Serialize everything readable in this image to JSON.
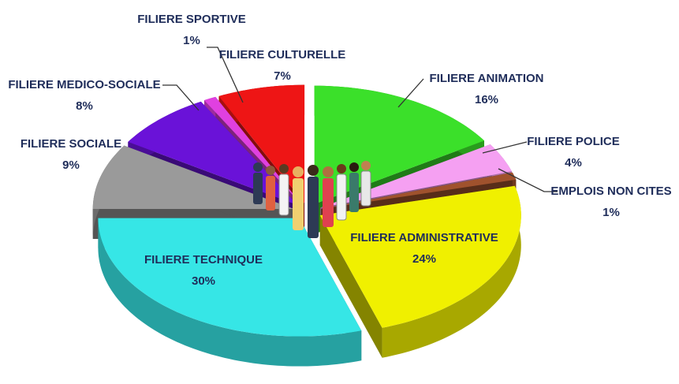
{
  "chart_data": {
    "type": "pie3d",
    "categories": [
      "FILIERE ANIMATION",
      "FILIERE POLICE",
      "EMPLOIS NON CITES",
      "FILIERE ADMINISTRATIVE",
      "FILIERE TECHNIQUE",
      "FILIERE SOCIALE",
      "FILIERE MEDICO-SOCIALE",
      "FILIERE SPORTIVE",
      "FILIERE CULTURELLE"
    ],
    "values": [
      16,
      4,
      1,
      24,
      30,
      9,
      8,
      1,
      7
    ],
    "value_labels": [
      "16%",
      "4%",
      "1%",
      "24%",
      "30%",
      "9%",
      "8%",
      "1%",
      "7%"
    ],
    "colors": [
      "#3be02a",
      "#f5a0f2",
      "#a0522d",
      "#f0f000",
      "#36e6e6",
      "#9a9a9a",
      "#6a12d8",
      "#e040e0",
      "#ee1515"
    ]
  }
}
